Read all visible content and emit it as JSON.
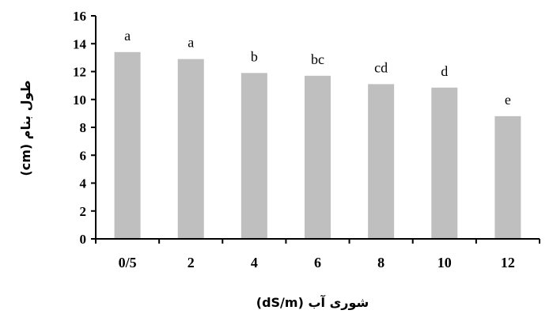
{
  "chart_data": {
    "type": "bar",
    "categories": [
      "0/5",
      "2",
      "4",
      "6",
      "8",
      "10",
      "12"
    ],
    "values": [
      13.4,
      12.9,
      11.9,
      11.7,
      11.1,
      10.85,
      8.8
    ],
    "significance_letters": [
      "a",
      "a",
      "b",
      "bc",
      "cd",
      "d",
      "e"
    ],
    "xlabel": "شوری آب (dS/m)",
    "ylabel": "طول بنام (cm)",
    "ylim": [
      0,
      16
    ],
    "yticks": [
      0,
      2,
      4,
      6,
      8,
      10,
      12,
      14,
      16
    ],
    "grid": false,
    "legend": "none",
    "bar_color": "#bfbfbf",
    "axis_color": "#000000"
  }
}
